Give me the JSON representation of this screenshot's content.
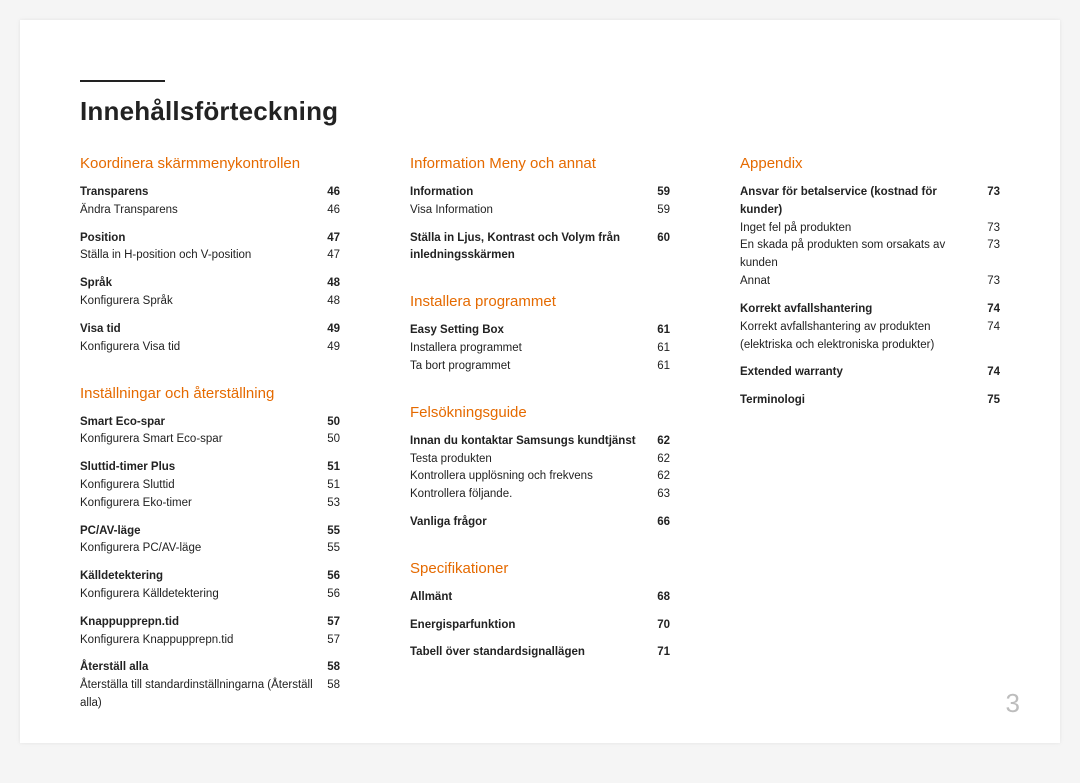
{
  "pageTitle": "Innehållsförteckning",
  "pageNumber": "3",
  "columns": [
    {
      "sections": [
        {
          "title": "Koordinera skärmmenykontrollen",
          "groups": [
            {
              "header": {
                "label": "Transparens",
                "page": "46"
              },
              "items": [
                {
                  "label": "Ändra Transparens",
                  "page": "46"
                }
              ]
            },
            {
              "header": {
                "label": "Position",
                "page": "47"
              },
              "items": [
                {
                  "label": "Ställa in H-position och V-position",
                  "page": "47"
                }
              ]
            },
            {
              "header": {
                "label": "Språk",
                "page": "48"
              },
              "items": [
                {
                  "label": "Konfigurera Språk",
                  "page": "48"
                }
              ]
            },
            {
              "header": {
                "label": "Visa tid",
                "page": "49"
              },
              "items": [
                {
                  "label": "Konfigurera Visa tid",
                  "page": "49"
                }
              ]
            }
          ]
        },
        {
          "title": "Inställningar och återställning",
          "groups": [
            {
              "header": {
                "label": "Smart Eco-spar",
                "page": "50"
              },
              "items": [
                {
                  "label": "Konfigurera Smart Eco-spar",
                  "page": "50"
                }
              ]
            },
            {
              "header": {
                "label": "Sluttid-timer Plus",
                "page": "51"
              },
              "items": [
                {
                  "label": "Konfigurera Sluttid",
                  "page": "51"
                },
                {
                  "label": "Konfigurera Eko-timer",
                  "page": "53"
                }
              ]
            },
            {
              "header": {
                "label": "PC/AV-läge",
                "page": "55"
              },
              "items": [
                {
                  "label": "Konfigurera PC/AV-läge",
                  "page": "55"
                }
              ]
            },
            {
              "header": {
                "label": "Källdetektering",
                "page": "56"
              },
              "items": [
                {
                  "label": "Konfigurera Källdetektering",
                  "page": "56"
                }
              ]
            },
            {
              "header": {
                "label": "Knappupprepn.tid",
                "page": "57"
              },
              "items": [
                {
                  "label": "Konfigurera Knappupprepn.tid",
                  "page": "57"
                }
              ]
            },
            {
              "header": {
                "label": "Återställ alla",
                "page": "58"
              },
              "items": [
                {
                  "label": "Återställa till standardinställningarna (Återställ alla)",
                  "page": "58"
                }
              ]
            }
          ]
        }
      ]
    },
    {
      "sections": [
        {
          "title": "Information Meny och annat",
          "groups": [
            {
              "header": {
                "label": "Information",
                "page": "59"
              },
              "items": [
                {
                  "label": "Visa Information",
                  "page": "59"
                }
              ]
            },
            {
              "header": {
                "label": "Ställa in Ljus, Kontrast och Volym från inledningsskärmen",
                "page": "60"
              },
              "items": []
            }
          ]
        },
        {
          "title": "Installera programmet",
          "groups": [
            {
              "header": {
                "label": "Easy Setting Box",
                "page": "61"
              },
              "items": [
                {
                  "label": "Installera programmet",
                  "page": "61"
                },
                {
                  "label": "Ta bort programmet",
                  "page": "61"
                }
              ]
            }
          ]
        },
        {
          "title": "Felsökningsguide",
          "groups": [
            {
              "header": {
                "label": "Innan du kontaktar Samsungs kundtjänst",
                "page": "62"
              },
              "items": [
                {
                  "label": "Testa produkten",
                  "page": "62"
                },
                {
                  "label": "Kontrollera upplösning och frekvens",
                  "page": "62"
                },
                {
                  "label": "Kontrollera följande.",
                  "page": "63"
                }
              ]
            },
            {
              "header": {
                "label": "Vanliga frågor",
                "page": "66"
              },
              "items": []
            }
          ]
        },
        {
          "title": "Specifikationer",
          "groups": [
            {
              "header": {
                "label": "Allmänt",
                "page": "68"
              },
              "items": []
            },
            {
              "header": {
                "label": "Energisparfunktion",
                "page": "70"
              },
              "items": []
            },
            {
              "header": {
                "label": "Tabell över standardsignallägen",
                "page": "71"
              },
              "items": []
            }
          ]
        }
      ]
    },
    {
      "sections": [
        {
          "title": "Appendix",
          "groups": [
            {
              "header": {
                "label": "Ansvar för betalservice (kostnad för kunder)",
                "page": "73"
              },
              "items": [
                {
                  "label": "Inget fel på produkten",
                  "page": "73"
                },
                {
                  "label": "En skada på produkten som orsakats av kunden",
                  "page": "73"
                },
                {
                  "label": "Annat",
                  "page": "73"
                }
              ]
            },
            {
              "header": {
                "label": "Korrekt avfallshantering",
                "page": "74"
              },
              "items": [
                {
                  "label": "Korrekt avfallshantering av produkten (elektriska och elektroniska produkter)",
                  "page": "74"
                }
              ]
            },
            {
              "header": {
                "label": "Extended warranty",
                "page": "74"
              },
              "items": []
            },
            {
              "header": {
                "label": "Terminologi",
                "page": "75"
              },
              "items": []
            }
          ]
        }
      ]
    }
  ]
}
